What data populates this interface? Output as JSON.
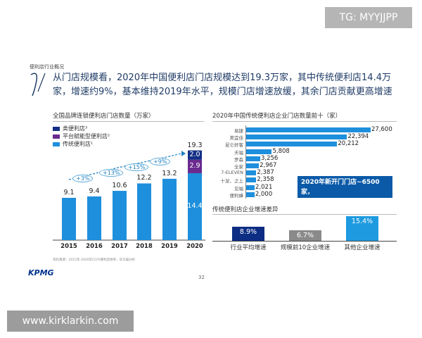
{
  "watermarks": {
    "top_right": "TG: MYYJJPP",
    "bottom_left": "www.kirklarkin.com"
  },
  "section_label": "便利店行业概况",
  "headline": "从门店规模看，2020年中国便利店门店规模达到19.3万家，其中传统便利店14.4万家，增速约9%，基本维持2019年水平，规模门店增速放缓，其余门店贡献更高增速",
  "colors": {
    "traditional": "#1e8fdc",
    "platform": "#6a2a8e",
    "quasi": "#132f86",
    "avg": "#0c2d83",
    "top10": "#8a8a8a",
    "others": "#1e9be0",
    "callout": "#0a5aa8"
  },
  "chart_data": [
    {
      "type": "bar",
      "stacked": true,
      "title": "全国品牌连锁便利店门店数量（万家）",
      "categories": [
        "2015",
        "2016",
        "2017",
        "2018",
        "2019",
        "2020"
      ],
      "totals": [
        "9.1",
        "9.4",
        "10.6",
        "12.2",
        "13.2",
        "19.3"
      ],
      "series": [
        {
          "name": "传统便利店¹",
          "values": [
            9.1,
            9.4,
            10.6,
            12.2,
            13.2,
            14.4
          ]
        },
        {
          "name": "平台赋能型便利店²",
          "values": [
            0,
            0,
            0,
            0,
            0,
            2.9
          ]
        },
        {
          "name": "类便利店³",
          "values": [
            0,
            0,
            0,
            0,
            0,
            2.0
          ]
        }
      ],
      "segment_labels_2020": [
        "14.4",
        "2.9",
        "2.0"
      ],
      "growth_labels": [
        "+3%",
        "+13%",
        "+15%",
        "+9%"
      ],
      "ylim": [
        0,
        20
      ]
    },
    {
      "type": "bar",
      "orientation": "horizontal",
      "title": "2020年中国传统便利店企业门店数量前十（家）",
      "categories": [
        "易捷",
        "美宜佳",
        "昆仑好客",
        "天福",
        "罗森",
        "全家",
        "7-ELEVEN",
        "十足、之上",
        "见福",
        "便利蜂"
      ],
      "values": [
        27600,
        22394,
        20212,
        5808,
        3256,
        2967,
        2387,
        2358,
        2021,
        2000
      ],
      "value_labels": [
        "27,600",
        "22,394",
        "20,212",
        "5,808",
        "3,256",
        "2,967",
        "2,387",
        "2,358",
        "2,021",
        "2,000"
      ],
      "annotation": [
        "2020年新开门门店~6500家，",
        "占总新开门店~45%"
      ],
      "xlim": [
        0,
        30000
      ]
    },
    {
      "type": "bar",
      "title": "传统便利店企业增速差异",
      "categories": [
        "行业平均增速",
        "规模前10企业增速",
        "其他企业增速"
      ],
      "values": [
        8.9,
        6.7,
        15.4
      ],
      "value_labels": [
        "8.9%",
        "6.7%",
        "15.4%"
      ],
      "ylim": [
        0,
        16
      ]
    }
  ],
  "footer": {
    "logo": "KPMG",
    "page": "32",
    "source": "资料来源：2015年-2020年CCFA便利店榜单，毕马威分析"
  }
}
